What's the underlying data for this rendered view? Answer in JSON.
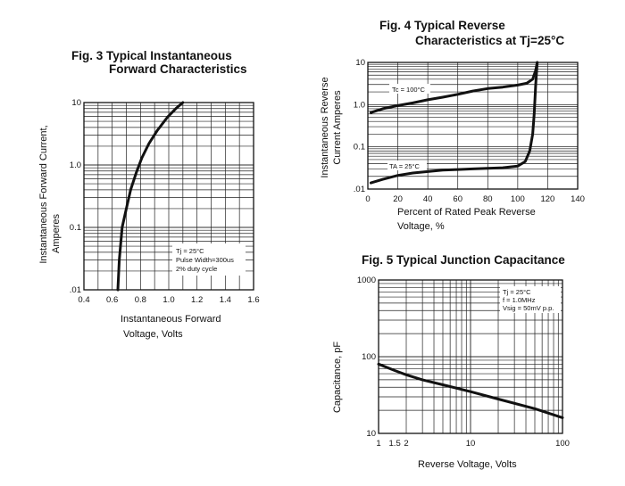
{
  "chart_data": [
    {
      "type": "line",
      "title": "Fig. 3 Typical Instantaneous",
      "title_line2": "Forward Characteristics",
      "ylabel": "Instantaneous Forward Current,",
      "ylabel_line2": "Amperes",
      "xlabel": "Instantaneous Forward",
      "xlabel_line2": "Voltage, Volts",
      "xlim": [
        0.4,
        1.6
      ],
      "ylim": [
        0.01,
        10
      ],
      "yscale": "log",
      "xticks": [
        "0.4",
        "0.6",
        "0.8",
        "1.0",
        "1.2",
        "1.4",
        "1.6"
      ],
      "yticks": [
        ".01",
        "0.1",
        "1.0",
        "10"
      ],
      "grid": true,
      "annotation": [
        "Tj = 25°C",
        "Pulse Width=300us",
        "2% duty cycle"
      ],
      "series": [
        {
          "x": [
            0.64,
            0.65,
            0.67,
            0.7,
            0.73,
            0.77,
            0.81,
            0.86,
            0.92,
            0.99,
            1.05,
            1.1
          ],
          "y": [
            0.01,
            0.03,
            0.1,
            0.2,
            0.4,
            0.75,
            1.3,
            2.2,
            3.6,
            5.8,
            8.0,
            10.0
          ]
        }
      ]
    },
    {
      "type": "line",
      "title": "Fig. 4 Typical Reverse",
      "title_line2": "Characteristics at Tj=25°C",
      "ylabel": "Instantaneous Reverse",
      "ylabel_line2": "Current Amperes",
      "xlabel": "Percent of Rated Peak Reverse",
      "xlabel_line2": "Voltage, %",
      "xlim": [
        0,
        140
      ],
      "ylim": [
        0.01,
        10
      ],
      "yscale": "log",
      "xticks": [
        "0",
        "20",
        "40",
        "60",
        "80",
        "100",
        "120",
        "140"
      ],
      "yticks": [
        ".01",
        "0.1",
        "1.0",
        "10"
      ],
      "grid": true,
      "series": [
        {
          "name": "Tc = 100°C",
          "x": [
            2,
            10,
            20,
            30,
            40,
            50,
            60,
            70,
            80,
            90,
            100,
            106,
            110,
            112,
            113
          ],
          "y": [
            0.65,
            0.8,
            0.95,
            1.1,
            1.3,
            1.5,
            1.75,
            2.1,
            2.4,
            2.6,
            2.9,
            3.2,
            4.0,
            6.5,
            10.0
          ]
        },
        {
          "name": "TA = 25°C",
          "x": [
            2,
            10,
            20,
            30,
            40,
            50,
            60,
            70,
            80,
            90,
            100,
            105,
            108,
            110,
            111,
            112,
            113
          ],
          "y": [
            0.014,
            0.017,
            0.021,
            0.024,
            0.026,
            0.028,
            0.029,
            0.03,
            0.031,
            0.032,
            0.035,
            0.045,
            0.08,
            0.2,
            0.6,
            3.0,
            10.0
          ]
        }
      ]
    },
    {
      "type": "line",
      "title": "Fig. 5 Typical Junction Capacitance",
      "ylabel": "Capacitance, pF",
      "xlabel": "Reverse Voltage, Volts",
      "xscale": "log",
      "yscale": "log",
      "xlim": [
        1,
        100
      ],
      "ylim": [
        10,
        1000
      ],
      "xticks": [
        "1",
        "1.5",
        "2",
        "10",
        "100"
      ],
      "yticks": [
        "10",
        "100",
        "1000"
      ],
      "grid": true,
      "annotation": [
        "Tj = 25°C",
        "f = 1.0MHz",
        "Vsig = 50mV p.p."
      ],
      "series": [
        {
          "x": [
            1,
            1.5,
            2,
            3,
            5,
            10,
            20,
            50,
            100
          ],
          "y": [
            80,
            66,
            58,
            50,
            43,
            35,
            28,
            21,
            16
          ]
        }
      ]
    }
  ]
}
